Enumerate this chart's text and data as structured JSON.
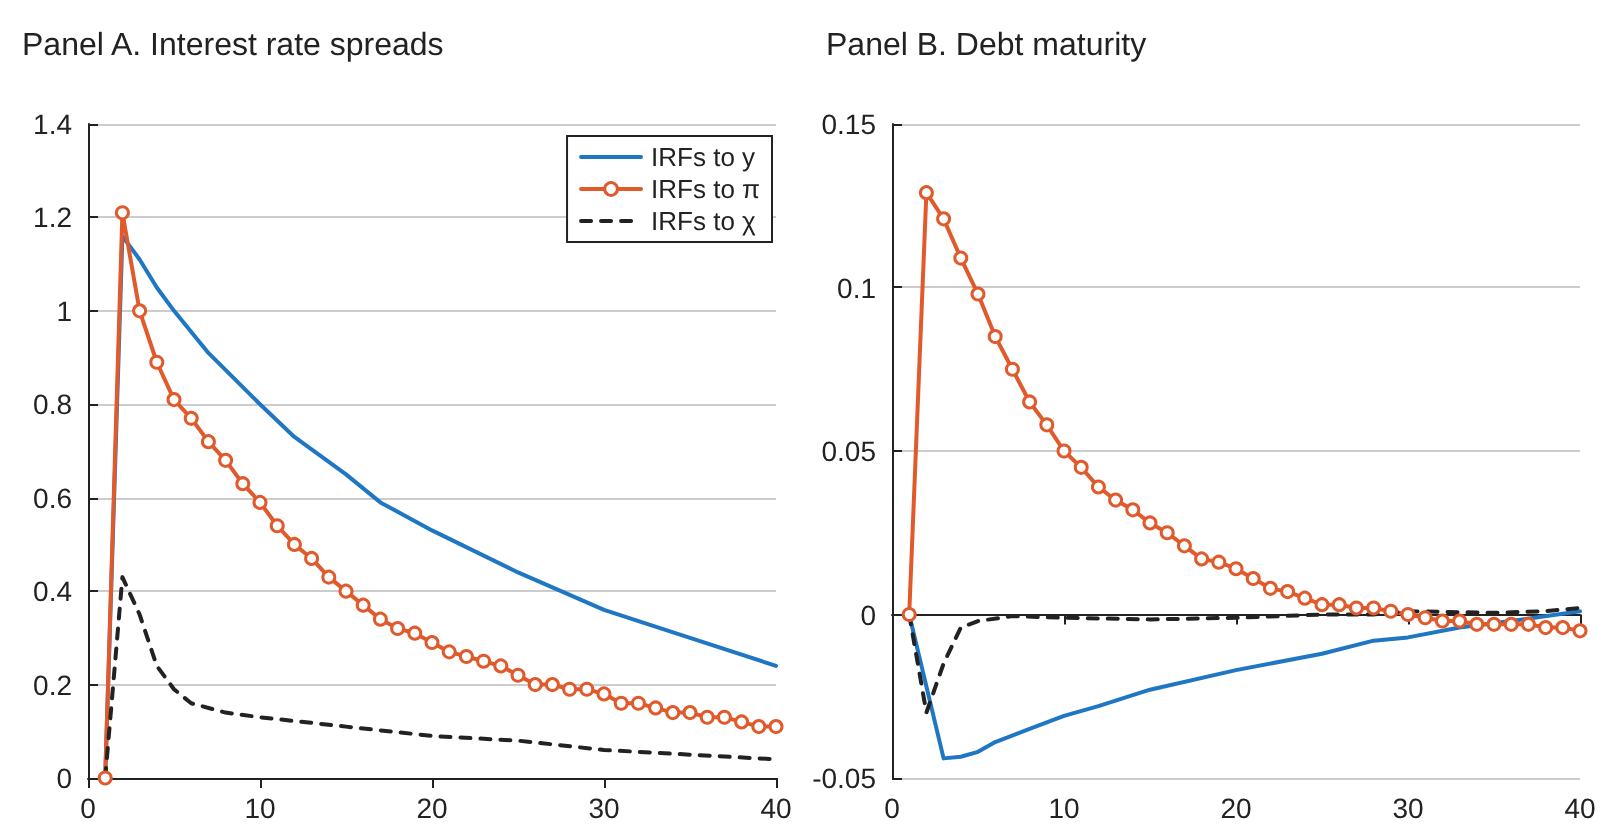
{
  "chart_data": [
    {
      "type": "line",
      "title": "Panel A. Interest rate spreads",
      "xlim": [
        0,
        40
      ],
      "xticks": [
        0,
        10,
        20,
        30,
        40
      ],
      "ylim": [
        0,
        1.4
      ],
      "yticks": [
        0,
        0.2,
        0.4,
        0.6,
        0.8,
        1,
        1.2,
        1.4
      ],
      "grid": "y",
      "legend": "top right",
      "series": [
        {
          "name": "IRFs to y",
          "color": "#1f77c4",
          "marker": "none",
          "line_style": "solid",
          "x": [
            1,
            2,
            3,
            4,
            5,
            7,
            10,
            12,
            15,
            17,
            20,
            25,
            30,
            35,
            40
          ],
          "values": [
            0,
            1.16,
            1.11,
            1.05,
            1.0,
            0.91,
            0.8,
            0.73,
            0.65,
            0.59,
            0.53,
            0.44,
            0.36,
            0.3,
            0.24
          ]
        },
        {
          "name": "IRFs to π",
          "color": "#e05a2b",
          "marker": "circle",
          "line_style": "solid",
          "x": [
            1,
            2,
            3,
            4,
            5,
            6,
            7,
            8,
            9,
            10,
            11,
            12,
            13,
            14,
            15,
            16,
            17,
            18,
            19,
            20,
            21,
            22,
            23,
            24,
            25,
            26,
            27,
            28,
            29,
            30,
            31,
            32,
            33,
            34,
            35,
            36,
            37,
            38,
            39,
            40
          ],
          "values": [
            0,
            1.21,
            1.0,
            0.89,
            0.81,
            0.77,
            0.72,
            0.68,
            0.63,
            0.59,
            0.54,
            0.5,
            0.47,
            0.43,
            0.4,
            0.37,
            0.34,
            0.32,
            0.31,
            0.29,
            0.27,
            0.26,
            0.25,
            0.24,
            0.22,
            0.2,
            0.2,
            0.19,
            0.19,
            0.18,
            0.16,
            0.16,
            0.15,
            0.14,
            0.14,
            0.13,
            0.13,
            0.12,
            0.11,
            0.11
          ]
        },
        {
          "name": "IRFs to χ",
          "color": "#222222",
          "marker": "none",
          "line_style": "dashed",
          "x": [
            1,
            2,
            3,
            4,
            5,
            6,
            8,
            10,
            15,
            20,
            25,
            30,
            35,
            40
          ],
          "values": [
            0,
            0.43,
            0.35,
            0.24,
            0.19,
            0.16,
            0.14,
            0.13,
            0.11,
            0.09,
            0.08,
            0.06,
            0.05,
            0.04
          ]
        }
      ]
    },
    {
      "type": "line",
      "title": "Panel B. Debt maturity",
      "xlim": [
        0,
        40
      ],
      "xticks": [
        0,
        10,
        20,
        30,
        40
      ],
      "ylim": [
        -0.05,
        0.15
      ],
      "yticks": [
        -0.05,
        0,
        0.05,
        0.1,
        0.15
      ],
      "grid": "y",
      "legend": false,
      "series": [
        {
          "color": "#1f77c4",
          "marker": "none",
          "line_style": "solid",
          "x": [
            1,
            3,
            4,
            5,
            6,
            8,
            10,
            12,
            15,
            20,
            25,
            28,
            30,
            33,
            36,
            40
          ],
          "values": [
            0,
            -0.044,
            -0.0435,
            -0.042,
            -0.039,
            -0.035,
            -0.031,
            -0.028,
            -0.023,
            -0.017,
            -0.012,
            -0.008,
            -0.007,
            -0.004,
            -0.002,
            0.001
          ]
        },
        {
          "color": "#e05a2b",
          "marker": "circle",
          "line_style": "solid",
          "x": [
            1,
            2,
            3,
            4,
            5,
            6,
            7,
            8,
            9,
            10,
            11,
            12,
            13,
            14,
            15,
            16,
            17,
            18,
            19,
            20,
            21,
            22,
            23,
            24,
            25,
            26,
            27,
            28,
            29,
            30,
            31,
            32,
            33,
            34,
            35,
            36,
            37,
            38,
            39,
            40
          ],
          "values": [
            0,
            0.129,
            0.121,
            0.109,
            0.098,
            0.085,
            0.075,
            0.065,
            0.058,
            0.05,
            0.045,
            0.039,
            0.035,
            0.032,
            0.028,
            0.025,
            0.021,
            0.017,
            0.016,
            0.014,
            0.011,
            0.008,
            0.007,
            0.005,
            0.003,
            0.003,
            0.002,
            0.002,
            0.001,
            0,
            -0.001,
            -0.002,
            -0.002,
            -0.003,
            -0.003,
            -0.003,
            -0.003,
            -0.004,
            -0.004,
            -0.005
          ]
        },
        {
          "color": "#222222",
          "marker": "none",
          "line_style": "dashed",
          "x": [
            1,
            2,
            3,
            4,
            5,
            7,
            10,
            15,
            20,
            25,
            28,
            30,
            35,
            38,
            40
          ],
          "values": [
            0,
            -0.03,
            -0.015,
            -0.004,
            -0.002,
            -0.0005,
            -0.001,
            -0.0015,
            -0.001,
            0,
            0,
            0.001,
            0.0005,
            0.001,
            0.002
          ]
        }
      ]
    }
  ]
}
